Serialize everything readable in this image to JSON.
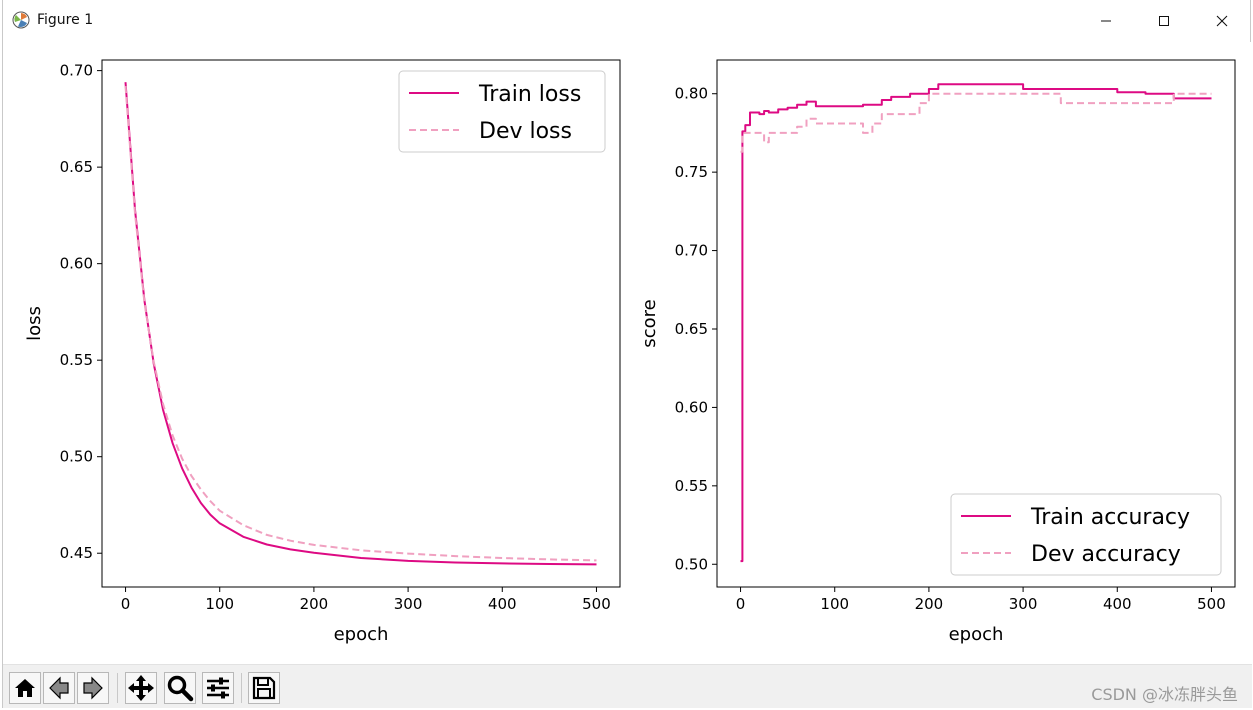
{
  "window": {
    "title": "Figure 1",
    "controls": {
      "minimize": "minimize",
      "maximize": "maximize",
      "close": "close"
    }
  },
  "toolbar": {
    "buttons": [
      "home-icon",
      "back-icon",
      "forward-icon",
      "pan-icon",
      "zoom-icon",
      "configure-subplots-icon",
      "save-icon"
    ],
    "watermark": "CSDN @冰冻胖头鱼"
  },
  "colors": {
    "train": "#dd0a83",
    "dev": "#f0a0c0"
  },
  "chart_data": [
    {
      "type": "line",
      "xlabel": "epoch",
      "ylabel": "loss",
      "xlim": [
        -25,
        525
      ],
      "ylim": [
        0.4325,
        0.7055
      ],
      "xticks": [
        0,
        100,
        200,
        300,
        400,
        500
      ],
      "yticks": [
        0.45,
        0.5,
        0.55,
        0.6,
        0.65,
        0.7
      ],
      "xtick_labels": [
        "0",
        "100",
        "200",
        "300",
        "400",
        "500"
      ],
      "ytick_labels": [
        "0.45",
        "0.50",
        "0.55",
        "0.60",
        "0.65",
        "0.70"
      ],
      "legend": "top-right",
      "x": [
        0,
        10,
        20,
        30,
        40,
        50,
        60,
        70,
        80,
        90,
        100,
        125,
        150,
        175,
        200,
        250,
        300,
        350,
        400,
        450,
        500
      ],
      "series": [
        {
          "name": "Train loss",
          "style": "solid",
          "values": [
            0.694,
            0.628,
            0.581,
            0.548,
            0.524,
            0.507,
            0.494,
            0.484,
            0.476,
            0.47,
            0.4655,
            0.4585,
            0.4545,
            0.452,
            0.4502,
            0.4475,
            0.446,
            0.4452,
            0.4447,
            0.4444,
            0.4442
          ]
        },
        {
          "name": "Dev loss",
          "style": "dashed",
          "values": [
            0.692,
            0.626,
            0.58,
            0.549,
            0.527,
            0.511,
            0.499,
            0.49,
            0.483,
            0.477,
            0.472,
            0.4645,
            0.4595,
            0.4565,
            0.4543,
            0.4515,
            0.4498,
            0.4485,
            0.4475,
            0.4468,
            0.4463
          ]
        }
      ]
    },
    {
      "type": "line",
      "xlabel": "epoch",
      "ylabel": "score",
      "xlim": [
        -25,
        525
      ],
      "ylim": [
        0.4855,
        0.8215
      ],
      "xticks": [
        0,
        100,
        200,
        300,
        400,
        500
      ],
      "yticks": [
        0.5,
        0.55,
        0.6,
        0.65,
        0.7,
        0.75,
        0.8
      ],
      "xtick_labels": [
        "0",
        "100",
        "200",
        "300",
        "400",
        "500"
      ],
      "ytick_labels": [
        "0.50",
        "0.55",
        "0.60",
        "0.65",
        "0.70",
        "0.75",
        "0.80"
      ],
      "legend": "bottom-right",
      "series": [
        {
          "name": "Train accuracy",
          "style": "solid",
          "drawstyle": "steps-post",
          "x": [
            0,
            2,
            5,
            10,
            20,
            25,
            30,
            40,
            50,
            60,
            70,
            80,
            100,
            130,
            150,
            160,
            180,
            200,
            210,
            230,
            260,
            300,
            350,
            400,
            430,
            460,
            500
          ],
          "values": [
            0.502,
            0.776,
            0.78,
            0.788,
            0.787,
            0.789,
            0.788,
            0.79,
            0.791,
            0.793,
            0.795,
            0.792,
            0.792,
            0.793,
            0.796,
            0.798,
            0.8,
            0.803,
            0.806,
            0.806,
            0.806,
            0.803,
            0.803,
            0.801,
            0.8,
            0.797,
            0.797
          ]
        },
        {
          "name": "Dev accuracy",
          "style": "dashed",
          "drawstyle": "steps-post",
          "x": [
            0,
            2,
            25,
            30,
            40,
            60,
            70,
            80,
            100,
            130,
            140,
            150,
            160,
            190,
            200,
            300,
            340,
            400,
            460,
            500
          ],
          "values": [
            0.763,
            0.775,
            0.769,
            0.775,
            0.775,
            0.779,
            0.784,
            0.781,
            0.781,
            0.775,
            0.781,
            0.787,
            0.787,
            0.794,
            0.8,
            0.8,
            0.794,
            0.794,
            0.8,
            0.8
          ]
        }
      ]
    }
  ]
}
